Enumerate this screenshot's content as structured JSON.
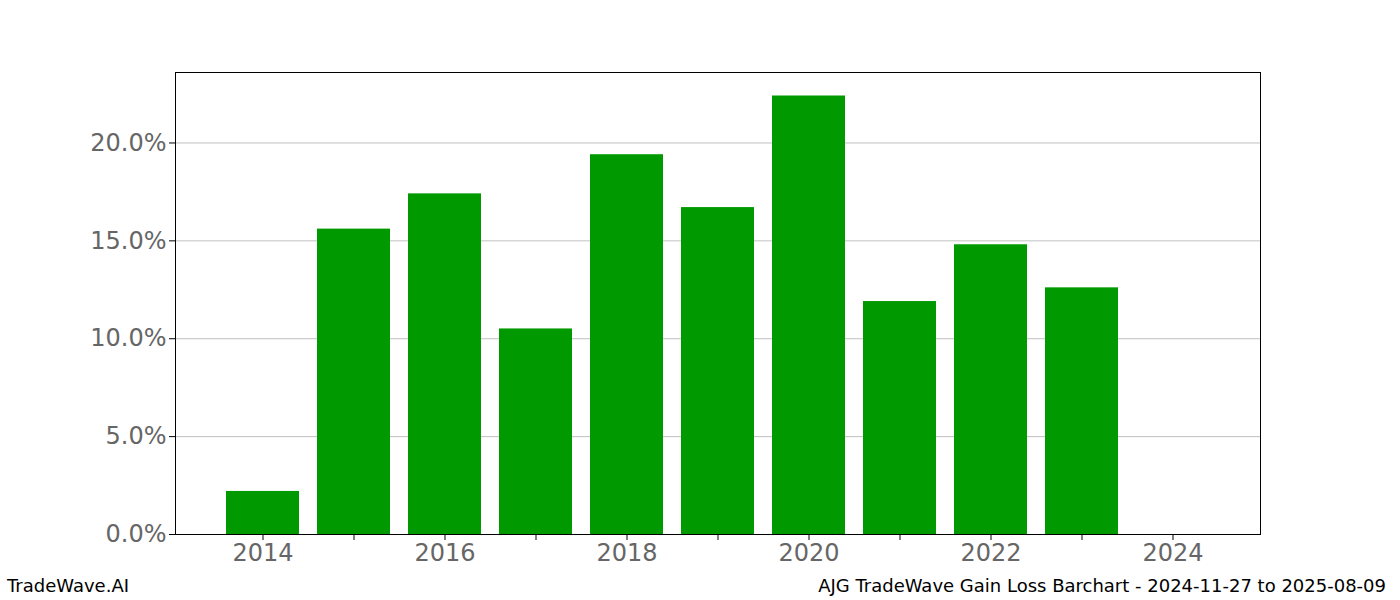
{
  "chart_data": {
    "type": "bar",
    "title": "AJG TradeWave Gain Loss Barchart - 2024-11-27 to 2025-08-09",
    "source": "TradeWave.AI",
    "categories": [
      "2014",
      null,
      "2016",
      null,
      "2018",
      null,
      "2020",
      null,
      "2022",
      null,
      "2024"
    ],
    "values": [
      2.2,
      15.6,
      17.4,
      10.5,
      19.4,
      16.7,
      22.4,
      11.9,
      14.8,
      12.6,
      0
    ],
    "color": "#009900",
    "ylim": [
      0,
      23.6
    ],
    "yticks": [
      {
        "value": 0,
        "label": "0.0%"
      },
      {
        "value": 5,
        "label": "5.0%"
      },
      {
        "value": 10,
        "label": "10.0%"
      },
      {
        "value": 15,
        "label": "15.0%"
      },
      {
        "value": 20,
        "label": "20.0%"
      }
    ],
    "grid": true
  }
}
